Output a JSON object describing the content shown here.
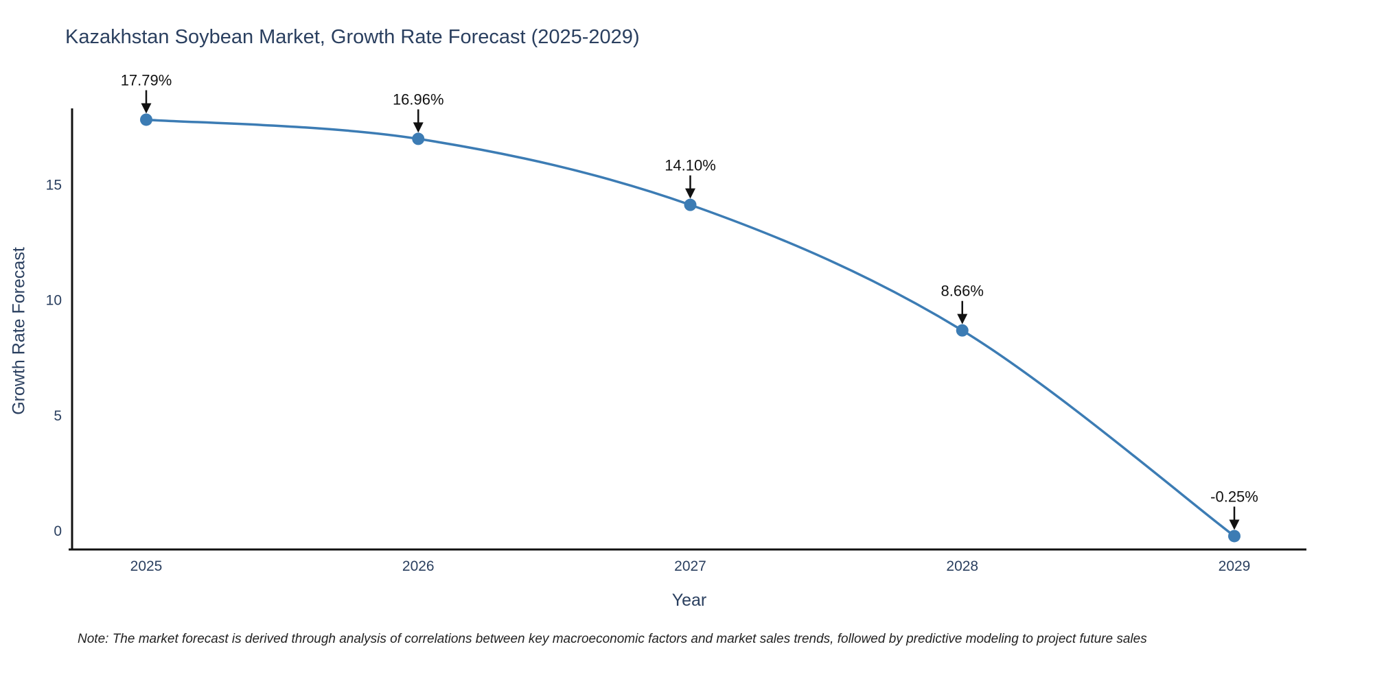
{
  "title": "Kazakhstan Soybean Market, Growth Rate Forecast (2025-2029)",
  "note": "Note: The market forecast is derived through analysis of correlations between key macroeconomic factors and market sales trends, followed by predictive modeling to project future sales",
  "chart_data": {
    "type": "line",
    "title": "Kazakhstan Soybean Market, Growth Rate Forecast (2025-2029)",
    "xlabel": "Year",
    "ylabel": "Growth Rate Forecast",
    "categories": [
      "2025",
      "2026",
      "2027",
      "2028",
      "2029"
    ],
    "values": [
      17.79,
      16.96,
      14.1,
      8.66,
      -0.25
    ],
    "point_labels": [
      "17.79%",
      "16.96%",
      "14.10%",
      "8.66%",
      "-0.25%"
    ],
    "yticks": [
      0,
      5,
      10,
      15
    ],
    "ylim": [
      -0.83,
      18.28
    ],
    "grid": false,
    "legend_position": "none",
    "line_shape": "spline",
    "line_color": "#3c7cb4",
    "marker_color": "#3c7cb4",
    "axis_color": "#111111",
    "annotation_color": "#111111",
    "text_color": "#2a3f5f"
  }
}
